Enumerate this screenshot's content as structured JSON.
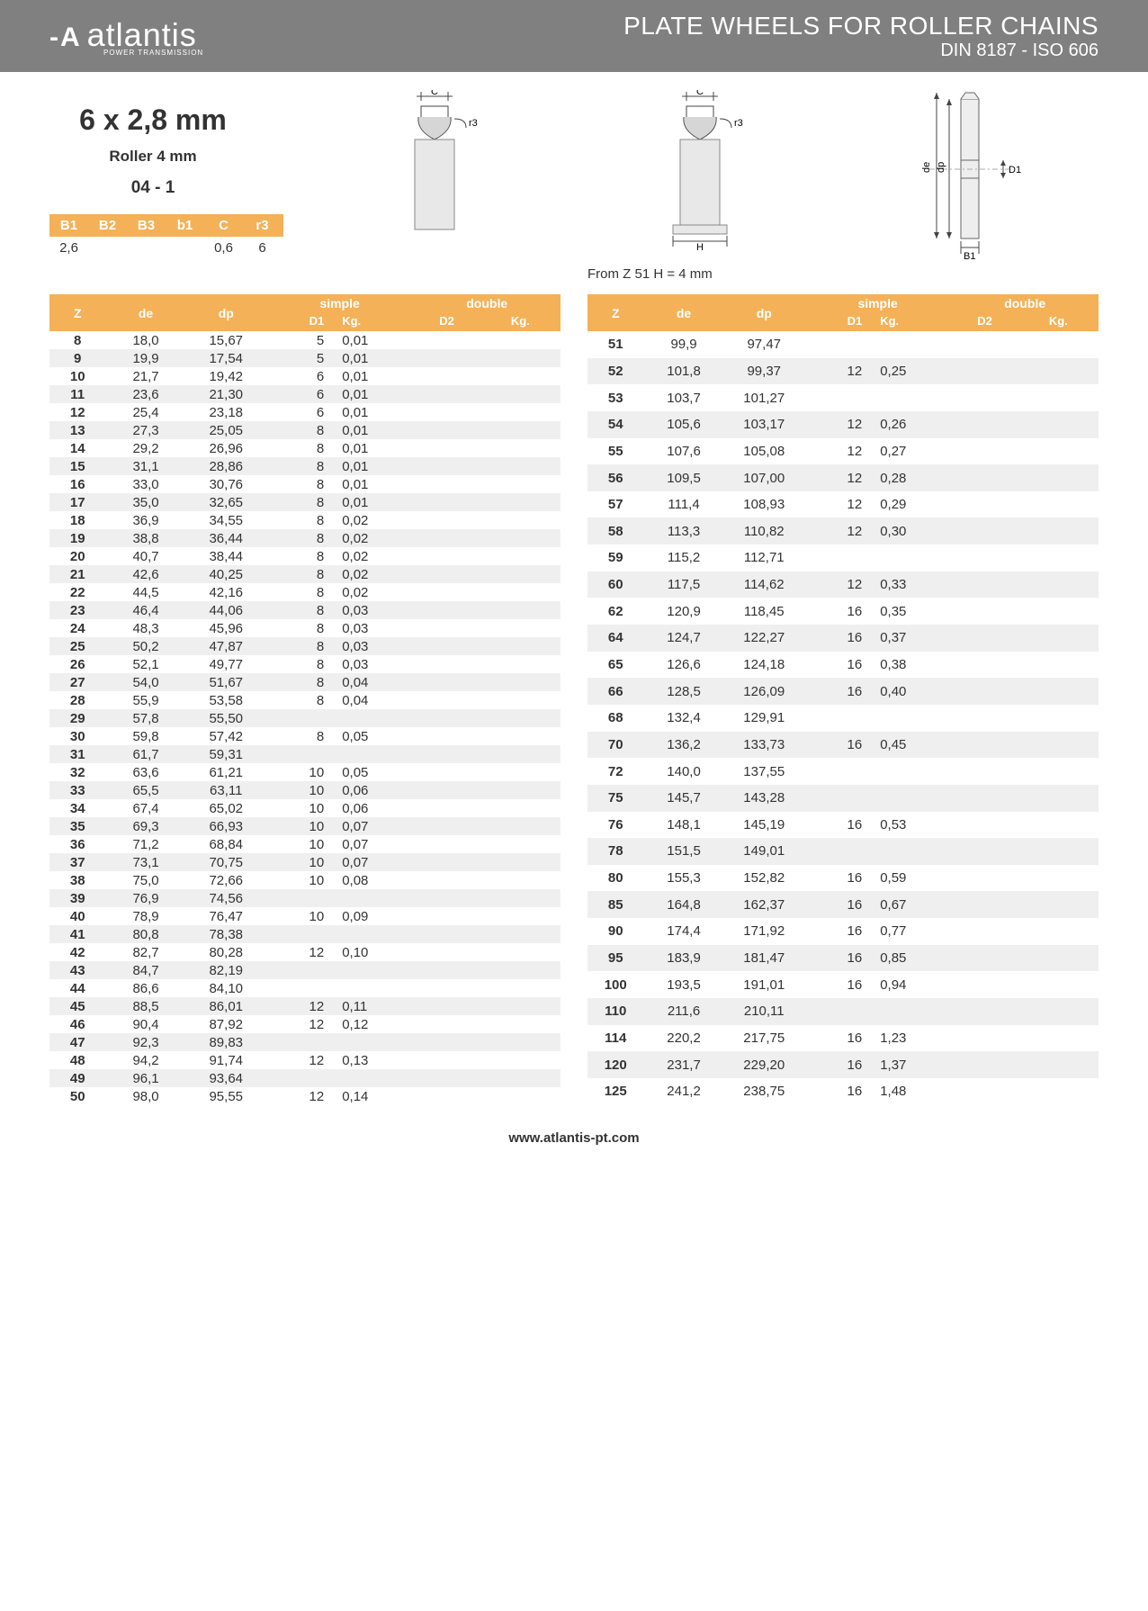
{
  "brand": "atlantis",
  "brand_tag": "POWER TRANSMISSION",
  "title_line1": "PLATE WHEELS FOR ROLLER CHAINS",
  "title_line2": "DIN 8187 - ISO 606",
  "spec_main": "6 x 2,8 mm",
  "spec_sub": "Roller 4 mm",
  "spec_code": "04 - 1",
  "note_text": "From Z 51 H = 4 mm",
  "footer_url": "www.atlantis-pt.com",
  "small_table": {
    "headers": [
      "B1",
      "B2",
      "B3",
      "b1",
      "C",
      "r3"
    ],
    "values": [
      "2,6",
      "",
      "",
      "",
      "0,6",
      "6"
    ]
  },
  "main_headers": {
    "z": "Z",
    "de": "de",
    "dp": "dp",
    "simple": "simple",
    "double": "double",
    "d1": "D1",
    "kg": "Kg.",
    "d2": "D2",
    "kg2": "Kg."
  },
  "diagram_labels": {
    "c": "C",
    "r3": "r3",
    "h": "H",
    "de": "de",
    "dp": "dp",
    "d1": "D1",
    "b1": "B1"
  },
  "left_rows": [
    [
      "8",
      "18,0",
      "15,67",
      "5",
      "0,01",
      "",
      ""
    ],
    [
      "9",
      "19,9",
      "17,54",
      "5",
      "0,01",
      "",
      ""
    ],
    [
      "10",
      "21,7",
      "19,42",
      "6",
      "0,01",
      "",
      ""
    ],
    [
      "11",
      "23,6",
      "21,30",
      "6",
      "0,01",
      "",
      ""
    ],
    [
      "12",
      "25,4",
      "23,18",
      "6",
      "0,01",
      "",
      ""
    ],
    [
      "13",
      "27,3",
      "25,05",
      "8",
      "0,01",
      "",
      ""
    ],
    [
      "14",
      "29,2",
      "26,96",
      "8",
      "0,01",
      "",
      ""
    ],
    [
      "15",
      "31,1",
      "28,86",
      "8",
      "0,01",
      "",
      ""
    ],
    [
      "16",
      "33,0",
      "30,76",
      "8",
      "0,01",
      "",
      ""
    ],
    [
      "17",
      "35,0",
      "32,65",
      "8",
      "0,01",
      "",
      ""
    ],
    [
      "18",
      "36,9",
      "34,55",
      "8",
      "0,02",
      "",
      ""
    ],
    [
      "19",
      "38,8",
      "36,44",
      "8",
      "0,02",
      "",
      ""
    ],
    [
      "20",
      "40,7",
      "38,44",
      "8",
      "0,02",
      "",
      ""
    ],
    [
      "21",
      "42,6",
      "40,25",
      "8",
      "0,02",
      "",
      ""
    ],
    [
      "22",
      "44,5",
      "42,16",
      "8",
      "0,02",
      "",
      ""
    ],
    [
      "23",
      "46,4",
      "44,06",
      "8",
      "0,03",
      "",
      ""
    ],
    [
      "24",
      "48,3",
      "45,96",
      "8",
      "0,03",
      "",
      ""
    ],
    [
      "25",
      "50,2",
      "47,87",
      "8",
      "0,03",
      "",
      ""
    ],
    [
      "26",
      "52,1",
      "49,77",
      "8",
      "0,03",
      "",
      ""
    ],
    [
      "27",
      "54,0",
      "51,67",
      "8",
      "0,04",
      "",
      ""
    ],
    [
      "28",
      "55,9",
      "53,58",
      "8",
      "0,04",
      "",
      ""
    ],
    [
      "29",
      "57,8",
      "55,50",
      "",
      "",
      "",
      ""
    ],
    [
      "30",
      "59,8",
      "57,42",
      "8",
      "0,05",
      "",
      ""
    ],
    [
      "31",
      "61,7",
      "59,31",
      "",
      "",
      "",
      ""
    ],
    [
      "32",
      "63,6",
      "61,21",
      "10",
      "0,05",
      "",
      ""
    ],
    [
      "33",
      "65,5",
      "63,11",
      "10",
      "0,06",
      "",
      ""
    ],
    [
      "34",
      "67,4",
      "65,02",
      "10",
      "0,06",
      "",
      ""
    ],
    [
      "35",
      "69,3",
      "66,93",
      "10",
      "0,07",
      "",
      ""
    ],
    [
      "36",
      "71,2",
      "68,84",
      "10",
      "0,07",
      "",
      ""
    ],
    [
      "37",
      "73,1",
      "70,75",
      "10",
      "0,07",
      "",
      ""
    ],
    [
      "38",
      "75,0",
      "72,66",
      "10",
      "0,08",
      "",
      ""
    ],
    [
      "39",
      "76,9",
      "74,56",
      "",
      "",
      "",
      ""
    ],
    [
      "40",
      "78,9",
      "76,47",
      "10",
      "0,09",
      "",
      ""
    ],
    [
      "41",
      "80,8",
      "78,38",
      "",
      "",
      "",
      ""
    ],
    [
      "42",
      "82,7",
      "80,28",
      "12",
      "0,10",
      "",
      ""
    ],
    [
      "43",
      "84,7",
      "82,19",
      "",
      "",
      "",
      ""
    ],
    [
      "44",
      "86,6",
      "84,10",
      "",
      "",
      "",
      ""
    ],
    [
      "45",
      "88,5",
      "86,01",
      "12",
      "0,11",
      "",
      ""
    ],
    [
      "46",
      "90,4",
      "87,92",
      "12",
      "0,12",
      "",
      ""
    ],
    [
      "47",
      "92,3",
      "89,83",
      "",
      "",
      "",
      ""
    ],
    [
      "48",
      "94,2",
      "91,74",
      "12",
      "0,13",
      "",
      ""
    ],
    [
      "49",
      "96,1",
      "93,64",
      "",
      "",
      "",
      ""
    ],
    [
      "50",
      "98,0",
      "95,55",
      "12",
      "0,14",
      "",
      ""
    ]
  ],
  "right_rows": [
    [
      "51",
      "99,9",
      "97,47",
      "",
      "",
      "",
      ""
    ],
    [
      "52",
      "101,8",
      "99,37",
      "12",
      "0,25",
      "",
      ""
    ],
    [
      "53",
      "103,7",
      "101,27",
      "",
      "",
      "",
      ""
    ],
    [
      "54",
      "105,6",
      "103,17",
      "12",
      "0,26",
      "",
      ""
    ],
    [
      "55",
      "107,6",
      "105,08",
      "12",
      "0,27",
      "",
      ""
    ],
    [
      "56",
      "109,5",
      "107,00",
      "12",
      "0,28",
      "",
      ""
    ],
    [
      "57",
      "111,4",
      "108,93",
      "12",
      "0,29",
      "",
      ""
    ],
    [
      "58",
      "113,3",
      "110,82",
      "12",
      "0,30",
      "",
      ""
    ],
    [
      "59",
      "115,2",
      "112,71",
      "",
      "",
      "",
      ""
    ],
    [
      "60",
      "117,5",
      "114,62",
      "12",
      "0,33",
      "",
      ""
    ],
    [
      "62",
      "120,9",
      "118,45",
      "16",
      "0,35",
      "",
      ""
    ],
    [
      "64",
      "124,7",
      "122,27",
      "16",
      "0,37",
      "",
      ""
    ],
    [
      "65",
      "126,6",
      "124,18",
      "16",
      "0,38",
      "",
      ""
    ],
    [
      "66",
      "128,5",
      "126,09",
      "16",
      "0,40",
      "",
      ""
    ],
    [
      "68",
      "132,4",
      "129,91",
      "",
      "",
      "",
      ""
    ],
    [
      "70",
      "136,2",
      "133,73",
      "16",
      "0,45",
      "",
      ""
    ],
    [
      "72",
      "140,0",
      "137,55",
      "",
      "",
      "",
      ""
    ],
    [
      "75",
      "145,7",
      "143,28",
      "",
      "",
      "",
      ""
    ],
    [
      "76",
      "148,1",
      "145,19",
      "16",
      "0,53",
      "",
      ""
    ],
    [
      "78",
      "151,5",
      "149,01",
      "",
      "",
      "",
      ""
    ],
    [
      "80",
      "155,3",
      "152,82",
      "16",
      "0,59",
      "",
      ""
    ],
    [
      "85",
      "164,8",
      "162,37",
      "16",
      "0,67",
      "",
      ""
    ],
    [
      "90",
      "174,4",
      "171,92",
      "16",
      "0,77",
      "",
      ""
    ],
    [
      "95",
      "183,9",
      "181,47",
      "16",
      "0,85",
      "",
      ""
    ],
    [
      "100",
      "193,5",
      "191,01",
      "16",
      "0,94",
      "",
      ""
    ],
    [
      "110",
      "211,6",
      "210,11",
      "",
      "",
      "",
      ""
    ],
    [
      "114",
      "220,2",
      "217,75",
      "16",
      "1,23",
      "",
      ""
    ],
    [
      "120",
      "231,7",
      "229,20",
      "16",
      "1,37",
      "",
      ""
    ],
    [
      "125",
      "241,2",
      "238,75",
      "16",
      "1,48",
      "",
      ""
    ]
  ],
  "colors": {
    "header_bg": "#808080",
    "accent": "#f4b157",
    "alt_row": "#efefef"
  }
}
